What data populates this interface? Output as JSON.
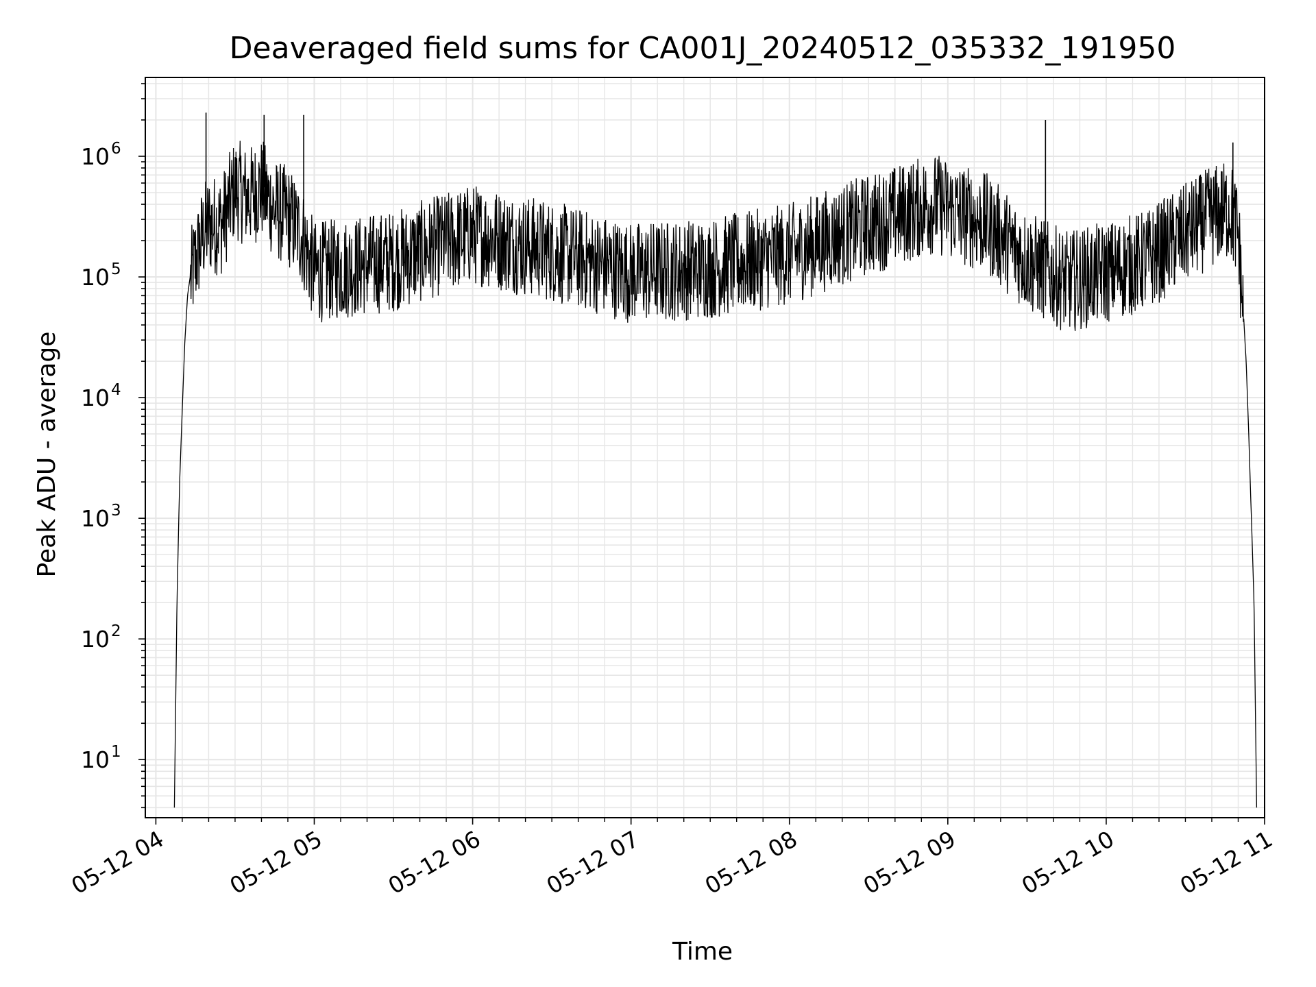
{
  "chart_data": {
    "type": "line",
    "title": "Deaveraged field sums for CA001J_20240512_035332_191950",
    "xlabel": "Time",
    "ylabel": "Peak ADU - average",
    "yscale": "log",
    "ylim": [
      3.3,
      4500000
    ],
    "xlim": [
      "05-12 03:56",
      "05-12 11:00"
    ],
    "x_ticks": [
      "05-12 04",
      "05-12 05",
      "05-12 06",
      "05-12 07",
      "05-12 08",
      "05-12 09",
      "05-12 10",
      "05-12 11"
    ],
    "y_ticks": [
      {
        "base": "10",
        "exp": "1"
      },
      {
        "base": "10",
        "exp": "2"
      },
      {
        "base": "10",
        "exp": "3"
      },
      {
        "base": "10",
        "exp": "4"
      },
      {
        "base": "10",
        "exp": "5"
      },
      {
        "base": "10",
        "exp": "6"
      }
    ],
    "grid": true,
    "line_color": "#000000",
    "grid_color": "#e6e6e6",
    "series": [
      {
        "x": [
          "05-12 04:07",
          "05-12 04:08",
          "05-12 04:09",
          "05-12 04:10",
          "05-12 04:11",
          "05-12 04:12",
          "05-12 04:13",
          "05-12 04:15",
          "05-12 04:18",
          "05-12 04:20",
          "05-12 04:25",
          "05-12 04:30",
          "05-12 04:35",
          "05-12 04:40",
          "05-12 04:45",
          "05-12 04:50",
          "05-12 04:55",
          "05-12 05:00",
          "05-12 05:30",
          "05-12 06:00",
          "05-12 06:30",
          "05-12 07:00",
          "05-12 07:30",
          "05-12 08:00",
          "05-12 08:30",
          "05-12 08:55",
          "05-12 09:15",
          "05-12 09:30",
          "05-12 09:45",
          "05-12 10:00",
          "05-12 10:15",
          "05-12 10:30",
          "05-12 10:40",
          "05-12 10:47",
          "05-12 10:50",
          "05-12 10:52",
          "05-12 10:53",
          "05-12 10:54",
          "05-12 10:55",
          "05-12 10:56",
          "05-12 10:57"
        ],
        "values": [
          4,
          200,
          2000,
          8000,
          30000,
          70000,
          100000,
          150000,
          250000,
          300000,
          300000,
          600000,
          500000,
          600000,
          400000,
          350000,
          250000,
          120000,
          150000,
          250000,
          180000,
          120000,
          130000,
          170000,
          300000,
          450000,
          300000,
          150000,
          100000,
          120000,
          150000,
          250000,
          350000,
          400000,
          250000,
          50000,
          20000,
          5000,
          1000,
          200,
          4
        ]
      }
    ],
    "spikes": [
      {
        "x": "05-12 04:19",
        "value": 2300000
      },
      {
        "x": "05-12 04:41",
        "value": 2200000
      },
      {
        "x": "05-12 04:56",
        "value": 2200000
      },
      {
        "x": "05-12 09:37",
        "value": 2000000
      },
      {
        "x": "05-12 10:48",
        "value": 1300000
      }
    ]
  }
}
